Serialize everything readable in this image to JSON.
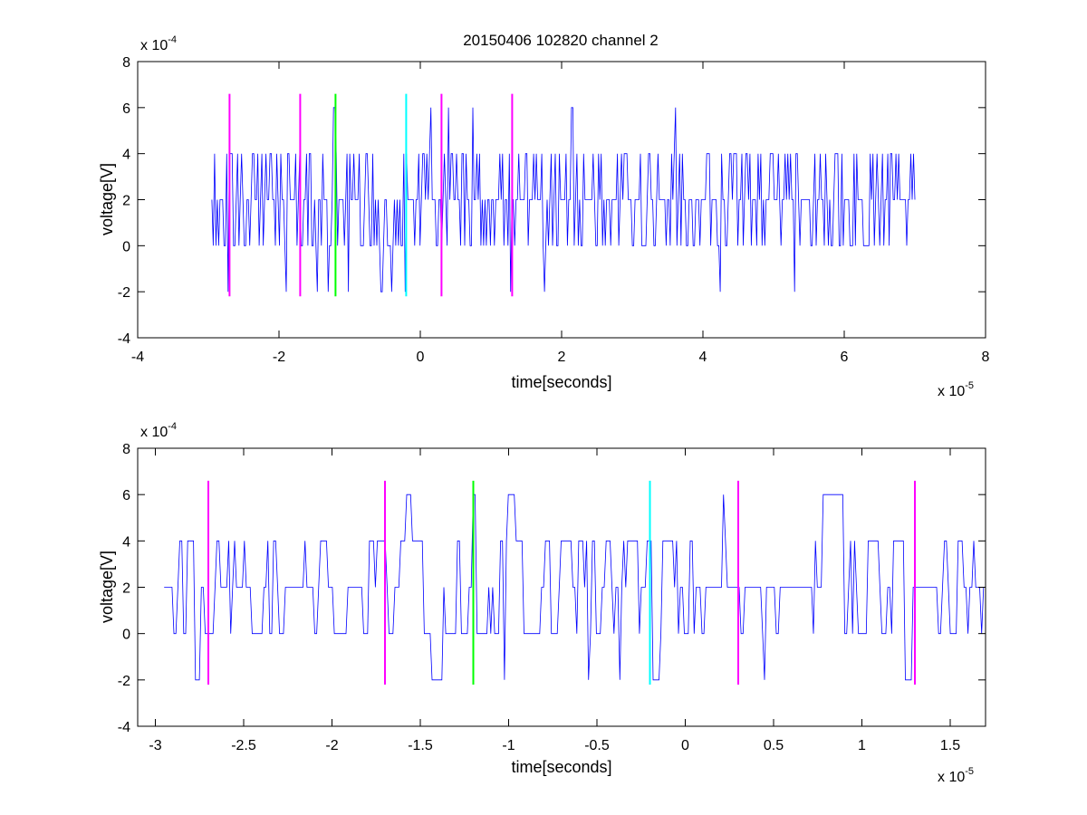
{
  "figure": {
    "title": "20150406 102820 channel 2"
  },
  "chart_data": [
    {
      "type": "line",
      "title": "20150406 102820 channel 2",
      "xlabel": "time[seconds]",
      "ylabel": "voltage[V]",
      "x_exponent_label": "x 10",
      "x_exponent_power": "-5",
      "y_exponent_label": "x 10",
      "y_exponent_power": "-4",
      "xlim": [
        -4,
        8
      ],
      "ylim": [
        -4,
        8
      ],
      "xticks": [
        -4,
        -2,
        0,
        2,
        4,
        6,
        8
      ],
      "xtick_labels": [
        "-4",
        "-2",
        "0",
        "2",
        "4",
        "6",
        "8"
      ],
      "yticks": [
        -4,
        -2,
        0,
        2,
        4,
        6,
        8
      ],
      "ytick_labels": [
        "-4",
        "-2",
        "0",
        "2",
        "4",
        "6",
        "8"
      ],
      "grid": false,
      "series": [
        {
          "color": "#0000ff",
          "x_range": [
            -2.95,
            7.0
          ],
          "levels": [
            -2,
            0,
            2,
            4,
            6
          ],
          "baseline": 2,
          "spikes": [
            [
              -2.72,
              -2
            ],
            [
              -1.9,
              -2
            ],
            [
              -1.45,
              -2
            ],
            [
              -1.3,
              -2
            ],
            [
              -1.22,
              6
            ],
            [
              -1.02,
              -2
            ],
            [
              -0.55,
              -2
            ],
            [
              -0.4,
              -2
            ],
            [
              -0.22,
              -2
            ],
            [
              0.15,
              6
            ],
            [
              0.4,
              6
            ],
            [
              0.75,
              6
            ],
            [
              1.28,
              -2
            ],
            [
              1.75,
              -2
            ],
            [
              2.15,
              6
            ],
            [
              3.62,
              6
            ],
            [
              4.25,
              -2
            ],
            [
              5.3,
              -2
            ]
          ],
          "gap_segment": [
            1.3,
            1.75
          ]
        }
      ],
      "vertical_markers": [
        {
          "x": -2.7,
          "color": "#ff00ff",
          "y_range": [
            -2.2,
            6.6
          ]
        },
        {
          "x": -1.7,
          "color": "#ff00ff",
          "y_range": [
            -2.2,
            6.6
          ]
        },
        {
          "x": -1.2,
          "color": "#00ff00",
          "y_range": [
            -2.2,
            6.6
          ]
        },
        {
          "x": -0.2,
          "color": "#00ffff",
          "y_range": [
            -2.2,
            6.6
          ]
        },
        {
          "x": 0.3,
          "color": "#ff00ff",
          "y_range": [
            -2.2,
            6.6
          ]
        },
        {
          "x": 1.3,
          "color": "#ff00ff",
          "y_range": [
            -2.2,
            6.6
          ]
        }
      ]
    },
    {
      "type": "line",
      "title": "",
      "xlabel": "time[seconds]",
      "ylabel": "voltage[V]",
      "x_exponent_label": "x 10",
      "x_exponent_power": "-5",
      "y_exponent_label": "x 10",
      "y_exponent_power": "-4",
      "xlim": [
        -3.1,
        1.7
      ],
      "ylim": [
        -4,
        8
      ],
      "xticks": [
        -3,
        -2.5,
        -2,
        -1.5,
        -1,
        -0.5,
        0,
        0.5,
        1,
        1.5
      ],
      "xtick_labels": [
        "-3",
        "-2.5",
        "-2",
        "-1.5",
        "-1",
        "-0.5",
        "0",
        "0.5",
        "1",
        "1.5"
      ],
      "yticks": [
        -4,
        -2,
        0,
        2,
        4,
        6,
        8
      ],
      "ytick_labels": [
        "-4",
        "-2",
        "0",
        "2",
        "4",
        "6",
        "8"
      ],
      "grid": false,
      "series": [
        {
          "color": "#0000ff",
          "x_range": [
            -2.95,
            1.7
          ],
          "levels": [
            -2,
            0,
            2,
            4,
            6
          ],
          "baseline": 2,
          "spikes": [
            [
              -2.77,
              -2
            ],
            [
              -1.43,
              -2
            ],
            [
              -1.02,
              -2
            ],
            [
              -0.55,
              -2
            ],
            [
              -0.37,
              -2
            ],
            [
              -0.18,
              -2
            ],
            [
              0.45,
              -2
            ],
            [
              1.25,
              -2
            ],
            [
              -1.58,
              6
            ],
            [
              -1.2,
              6
            ],
            [
              -1.0,
              6
            ],
            [
              0.22,
              6
            ],
            [
              0.78,
              6
            ],
            [
              -2.3,
              0
            ],
            [
              -2.1,
              0
            ],
            [
              -1.82,
              0
            ],
            [
              -1.67,
              0
            ],
            [
              0.95,
              0
            ]
          ],
          "gap_segment": null
        }
      ],
      "vertical_markers": [
        {
          "x": -2.7,
          "color": "#ff00ff",
          "y_range": [
            -2.2,
            6.6
          ]
        },
        {
          "x": -1.7,
          "color": "#ff00ff",
          "y_range": [
            -2.2,
            6.6
          ]
        },
        {
          "x": -1.2,
          "color": "#00ff00",
          "y_range": [
            -2.2,
            6.6
          ]
        },
        {
          "x": -0.2,
          "color": "#00ffff",
          "y_range": [
            -2.2,
            6.6
          ]
        },
        {
          "x": 0.3,
          "color": "#ff00ff",
          "y_range": [
            -2.2,
            6.6
          ]
        },
        {
          "x": 1.3,
          "color": "#ff00ff",
          "y_range": [
            -2.2,
            6.6
          ]
        }
      ]
    }
  ]
}
